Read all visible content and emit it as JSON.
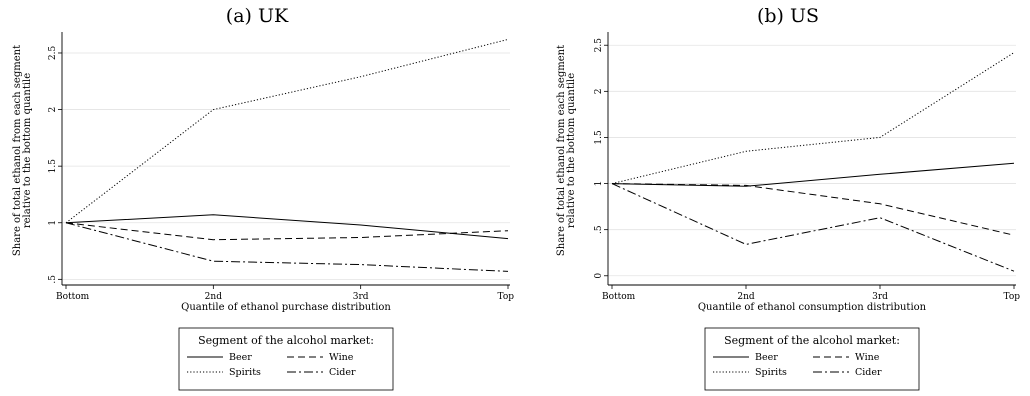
{
  "legend": {
    "title": "Segment of the alcohol market:"
  },
  "chart_data": [
    {
      "type": "line",
      "title": "(a) UK",
      "xlabel": "Quantile of ethanol purchase distribution",
      "ylabel": "Share of total ethanol from each segment relative to the bottom quantile",
      "categories": [
        "Bottom",
        "2nd",
        "3rd",
        "Top"
      ],
      "yticks": [
        ".5",
        "1",
        "1.5",
        "2",
        "2.5"
      ],
      "ylim": [
        0.45,
        2.65
      ],
      "grid": true,
      "legend_position": "bottom",
      "series": [
        {
          "name": "Beer",
          "style": "solid",
          "values": [
            1.0,
            1.07,
            0.98,
            0.86
          ]
        },
        {
          "name": "Wine",
          "style": "dashed",
          "values": [
            1.0,
            0.85,
            0.87,
            0.93
          ]
        },
        {
          "name": "Spirits",
          "style": "dotted",
          "values": [
            1.0,
            2.0,
            2.29,
            2.62
          ]
        },
        {
          "name": "Cider",
          "style": "dashdot",
          "values": [
            1.0,
            0.66,
            0.63,
            0.57
          ]
        }
      ]
    },
    {
      "type": "line",
      "title": "(b) US",
      "xlabel": "Quantile of ethanol consumption distribution",
      "ylabel": "Share of total ethanol from each segment relative to the bottom quantile",
      "categories": [
        "Bottom",
        "2nd",
        "3rd",
        "Top"
      ],
      "yticks": [
        "0",
        ".5",
        "1",
        "1.5",
        "2",
        "2.5"
      ],
      "ylim": [
        -0.1,
        2.6
      ],
      "grid": true,
      "legend_position": "bottom",
      "series": [
        {
          "name": "Beer",
          "style": "solid",
          "values": [
            1.0,
            0.97,
            1.1,
            1.22
          ]
        },
        {
          "name": "Wine",
          "style": "dashed",
          "values": [
            1.0,
            0.98,
            0.78,
            0.44
          ]
        },
        {
          "name": "Spirits",
          "style": "dotted",
          "values": [
            1.0,
            1.35,
            1.5,
            2.42
          ]
        },
        {
          "name": "Cider",
          "style": "dashdot",
          "values": [
            1.0,
            0.34,
            0.63,
            0.05
          ]
        }
      ]
    }
  ]
}
